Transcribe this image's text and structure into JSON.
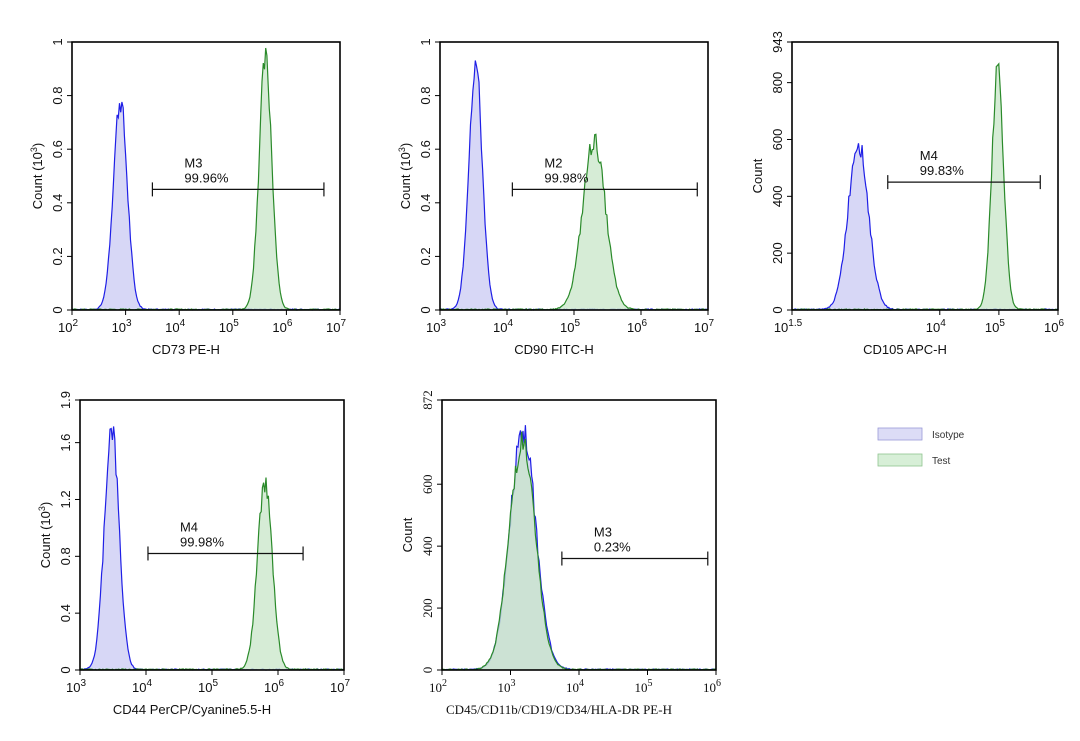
{
  "colors": {
    "isotype_stroke": "#1f1fe6",
    "isotype_fill": "#c9c9f3",
    "test_stroke": "#2a8a2a",
    "test_fill": "#c8e6c8",
    "legend_isotype_fill": "#dcdcf6",
    "legend_test_fill": "#d7efd7"
  },
  "legend": {
    "entries": [
      {
        "label": "Isotype",
        "color_key": "isotype"
      },
      {
        "label": "Test",
        "color_key": "test"
      }
    ]
  },
  "chart_data": [
    {
      "type": "histogram",
      "xlabel": "CD73 PE-H",
      "ylabel": "Count",
      "ylabel_exp": "3",
      "xlog": [
        2,
        7
      ],
      "yrange": [
        0,
        1
      ],
      "xticks": [
        {
          "b": "10",
          "e": "2",
          "v": 2
        },
        {
          "b": "10",
          "e": "3",
          "v": 3
        },
        {
          "b": "10",
          "e": "4",
          "v": 4
        },
        {
          "b": "10",
          "e": "5",
          "v": 5
        },
        {
          "b": "10",
          "e": "6",
          "v": 6
        },
        {
          "b": "10",
          "e": "7",
          "v": 7
        }
      ],
      "yticks": [
        {
          "label": "0",
          "v": 0
        },
        {
          "label": "0.2",
          "v": 0.2
        },
        {
          "label": "0.4",
          "v": 0.4
        },
        {
          "label": "0.6",
          "v": 0.6
        },
        {
          "label": "0.8",
          "v": 0.8
        },
        {
          "label": "1",
          "v": 1
        }
      ],
      "isotype": {
        "mu": 2.9,
        "sigma": 0.13,
        "peak": 0.78
      },
      "test": {
        "mu": 5.61,
        "sigma": 0.12,
        "peak": 0.93
      },
      "marker": {
        "name": "M3",
        "pct": "99.96%",
        "x_from": 3.5,
        "x_to": 6.7,
        "y": 0.45
      }
    },
    {
      "type": "histogram",
      "xlabel": "CD90 FITC-H",
      "ylabel": "Count",
      "ylabel_exp": "3",
      "xlog": [
        3,
        7
      ],
      "yrange": [
        0,
        1
      ],
      "xticks": [
        {
          "b": "10",
          "e": "3",
          "v": 3
        },
        {
          "b": "10",
          "e": "4",
          "v": 4
        },
        {
          "b": "10",
          "e": "5",
          "v": 5
        },
        {
          "b": "10",
          "e": "6",
          "v": 6
        },
        {
          "b": "10",
          "e": "7",
          "v": 7
        }
      ],
      "yticks": [
        {
          "label": "0",
          "v": 0
        },
        {
          "label": "0.2",
          "v": 0.2
        },
        {
          "label": "0.4",
          "v": 0.4
        },
        {
          "label": "0.6",
          "v": 0.6
        },
        {
          "label": "0.8",
          "v": 0.8
        },
        {
          "label": "1",
          "v": 1
        }
      ],
      "isotype": {
        "mu": 3.53,
        "sigma": 0.1,
        "peak": 0.92
      },
      "test": {
        "mu": 5.3,
        "sigma": 0.17,
        "peak": 0.63
      },
      "marker": {
        "name": "M2",
        "pct": "99.98%",
        "x_from": 4.08,
        "x_to": 6.84,
        "y": 0.45
      }
    },
    {
      "type": "histogram",
      "xlabel": "CD105 APC-H",
      "ylabel": "Count",
      "ylabel_exp": "",
      "xlog": [
        1.5,
        6
      ],
      "yrange": [
        0,
        943
      ],
      "xticks": [
        {
          "b": "10",
          "e": "1.5",
          "v": 1.5
        },
        {
          "b": "10",
          "e": "4",
          "v": 4
        },
        {
          "b": "10",
          "e": "5",
          "v": 5
        },
        {
          "b": "10",
          "e": "6",
          "v": 6
        }
      ],
      "yticks": [
        {
          "label": "0",
          "v": 0
        },
        {
          "label": "200",
          "v": 200
        },
        {
          "label": "400",
          "v": 400
        },
        {
          "label": "600",
          "v": 600
        },
        {
          "label": "800",
          "v": 800
        },
        {
          "label": "943",
          "v": 943
        }
      ],
      "isotype": {
        "mu": 2.62,
        "sigma": 0.17,
        "peak": 590
      },
      "test": {
        "mu": 4.98,
        "sigma": 0.1,
        "peak": 850
      },
      "marker": {
        "name": "M4",
        "pct": "99.83%",
        "x_from": 3.12,
        "x_to": 5.7,
        "y": 450
      }
    },
    {
      "type": "histogram",
      "xlabel": "CD44 PerCP/Cyanine5.5-H",
      "ylabel": "Count",
      "ylabel_exp": "3",
      "xlog": [
        3,
        7
      ],
      "yrange": [
        0,
        1.9
      ],
      "xticks": [
        {
          "b": "10",
          "e": "3",
          "v": 3
        },
        {
          "b": "10",
          "e": "4",
          "v": 4
        },
        {
          "b": "10",
          "e": "5",
          "v": 5
        },
        {
          "b": "10",
          "e": "6",
          "v": 6
        },
        {
          "b": "10",
          "e": "7",
          "v": 7
        }
      ],
      "yticks": [
        {
          "label": "0",
          "v": 0
        },
        {
          "label": "0.4",
          "v": 0.4
        },
        {
          "label": "0.8",
          "v": 0.8
        },
        {
          "label": "1.2",
          "v": 1.2
        },
        {
          "label": "1.6",
          "v": 1.6
        },
        {
          "label": "1.9",
          "v": 1.9
        }
      ],
      "isotype": {
        "mu": 3.48,
        "sigma": 0.11,
        "peak": 1.71
      },
      "test": {
        "mu": 5.8,
        "sigma": 0.11,
        "peak": 1.33
      },
      "marker": {
        "name": "M4",
        "pct": "99.98%",
        "x_from": 4.03,
        "x_to": 6.38,
        "y": 0.82
      }
    },
    {
      "type": "histogram",
      "serif": true,
      "xlabel": "CD45/CD11b/CD19/CD34/HLA-DR PE-H",
      "ylabel": "Count",
      "ylabel_exp": "",
      "xlog": [
        2,
        6
      ],
      "yrange": [
        0,
        872
      ],
      "xticks": [
        {
          "b": "10",
          "e": "2",
          "v": 2
        },
        {
          "b": "10",
          "e": "3",
          "v": 3
        },
        {
          "b": "10",
          "e": "4",
          "v": 4
        },
        {
          "b": "10",
          "e": "5",
          "v": 5
        },
        {
          "b": "10",
          "e": "6",
          "v": 6
        }
      ],
      "yticks": [
        {
          "label": "0",
          "v": 0
        },
        {
          "label": "200",
          "v": 200
        },
        {
          "label": "400",
          "v": 400
        },
        {
          "label": "600",
          "v": 600
        },
        {
          "label": "872",
          "v": 872
        }
      ],
      "isotype": {
        "mu": 3.18,
        "sigma": 0.19,
        "peak": 765
      },
      "test": {
        "mu": 3.17,
        "sigma": 0.19,
        "peak": 735
      },
      "marker": {
        "name": "M3",
        "pct": "0.23%",
        "x_from": 3.75,
        "x_to": 5.88,
        "y": 360
      }
    }
  ]
}
